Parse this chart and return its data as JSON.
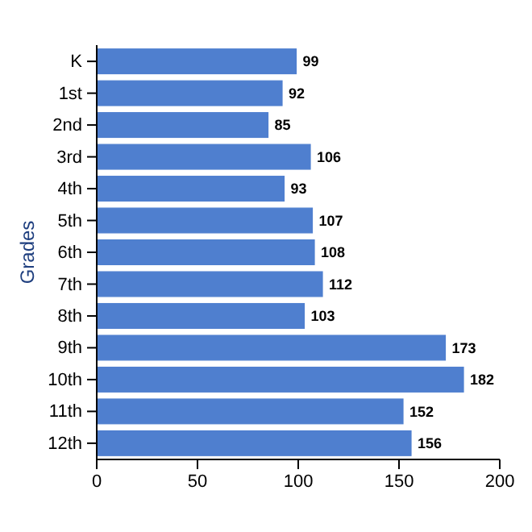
{
  "chart_data": {
    "type": "bar",
    "orientation": "horizontal",
    "ylabel": "Grades",
    "categories": [
      "K",
      "1st",
      "2nd",
      "3rd",
      "4th",
      "5th",
      "6th",
      "7th",
      "8th",
      "9th",
      "10th",
      "11th",
      "12th"
    ],
    "values": [
      99,
      92,
      85,
      106,
      93,
      107,
      108,
      112,
      103,
      173,
      182,
      152,
      156
    ],
    "color": "#4f7fcf",
    "xlim": [
      0,
      200
    ],
    "xticks": [
      0,
      50,
      100,
      150,
      200
    ],
    "data_labels": true,
    "grid": false
  }
}
